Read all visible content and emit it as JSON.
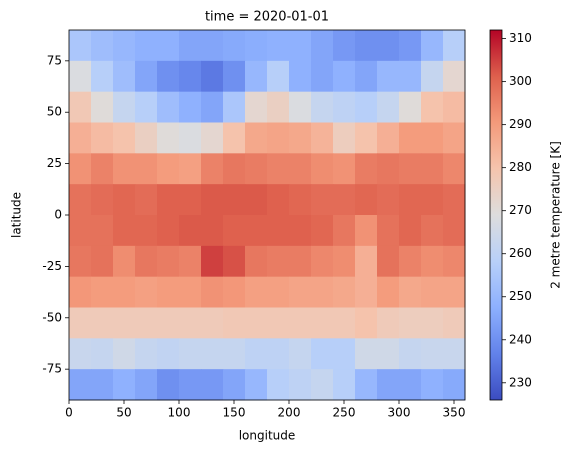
{
  "chart_data": {
    "type": "heatmap",
    "title": "time = 2020-01-01",
    "x_label": "longitude",
    "y_label": "latitude",
    "colorbar_label": "2 metre temperature [K]",
    "colormap": "coolwarm",
    "x": [
      10,
      30,
      50,
      70,
      90,
      110,
      130,
      150,
      170,
      190,
      210,
      230,
      250,
      270,
      290,
      310,
      330,
      350
    ],
    "y": [
      82.5,
      67.5,
      52.5,
      37.5,
      22.5,
      7.5,
      -7.5,
      -22.5,
      -37.5,
      -52.5,
      -67.5,
      -82.5
    ],
    "z": [
      [
        255,
        252,
        250,
        248,
        248,
        245,
        245,
        246,
        247,
        248,
        248,
        245,
        242,
        240,
        240,
        242,
        250,
        258
      ],
      [
        268,
        258,
        252,
        245,
        240,
        238,
        235,
        240,
        250,
        258,
        248,
        245,
        248,
        245,
        250,
        250,
        262,
        272
      ],
      [
        278,
        270,
        262,
        258,
        252,
        248,
        245,
        255,
        272,
        275,
        268,
        262,
        260,
        258,
        262,
        270,
        280,
        282
      ],
      [
        285,
        282,
        280,
        275,
        270,
        268,
        272,
        280,
        287,
        288,
        287,
        284,
        276,
        280,
        285,
        290,
        290,
        288
      ],
      [
        292,
        295,
        292,
        292,
        290,
        289,
        295,
        297,
        296,
        295,
        295,
        293,
        292,
        296,
        297,
        296,
        296,
        294
      ],
      [
        298,
        299,
        300,
        299,
        301,
        301,
        302,
        302,
        302,
        301,
        300,
        299,
        299,
        300,
        299,
        300,
        300,
        299
      ],
      [
        298,
        298,
        300,
        300,
        301,
        302,
        302,
        301,
        301,
        301,
        301,
        300,
        297,
        292,
        298,
        300,
        298,
        299
      ],
      [
        297,
        298,
        293,
        297,
        296,
        295,
        305,
        303,
        297,
        296,
        296,
        294,
        293,
        285,
        298,
        295,
        293,
        294
      ],
      [
        291,
        290,
        290,
        289,
        290,
        290,
        292,
        291,
        289,
        289,
        288,
        288,
        287,
        285,
        290,
        287,
        288,
        288
      ],
      [
        277,
        277,
        277,
        277,
        277,
        277,
        277,
        278,
        278,
        278,
        278,
        278,
        278,
        280,
        277,
        276,
        276,
        277
      ],
      [
        263,
        262,
        265,
        262,
        261,
        262,
        262,
        262,
        260,
        260,
        262,
        258,
        258,
        265,
        265,
        262,
        263,
        263
      ],
      [
        245,
        245,
        248,
        245,
        240,
        242,
        242,
        245,
        250,
        258,
        260,
        262,
        258,
        250,
        245,
        245,
        248,
        246
      ]
    ],
    "xlim": [
      0,
      360
    ],
    "ylim": [
      -90,
      90
    ],
    "clim": [
      226,
      312
    ],
    "xticks": [
      0,
      50,
      100,
      150,
      200,
      250,
      300,
      350
    ],
    "yticks": [
      -75,
      -50,
      -25,
      0,
      25,
      50,
      75
    ],
    "cticks": [
      230,
      240,
      250,
      260,
      270,
      280,
      290,
      300,
      310
    ]
  }
}
